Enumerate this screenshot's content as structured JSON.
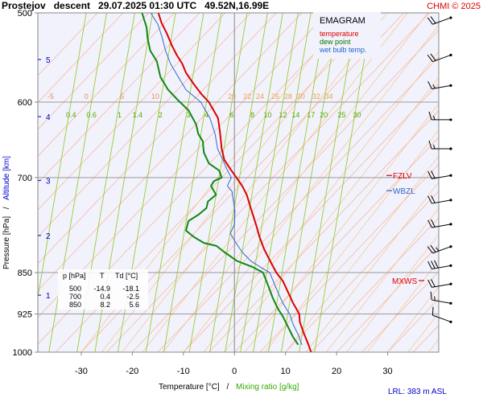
{
  "header": {
    "title": "Prostejov   descent   29.07.2025 01:30 UTC   49.52N,16.99E",
    "credit": "CHMI © 2025"
  },
  "legend": {
    "title": "EMAGRAM",
    "items": [
      {
        "label": "temperature",
        "color": "#dd0000"
      },
      {
        "label": "dew point",
        "color": "#007700"
      },
      {
        "label": "wet bulb temp.",
        "color": "#2266cc"
      }
    ]
  },
  "footer": {
    "lrl": "LRL: 383 m ASL"
  },
  "colors": {
    "plot_bg": "#f2f2fc",
    "temperature": "#dd0000",
    "dewpoint": "#118811",
    "wetbulb": "#3366cc",
    "dry_adiabat": "#f3b9a0",
    "moist_adiabat": "#f5c89a",
    "mixing_ratio": "#99cc33",
    "isobar": "#999999",
    "altitude": "#0000cc",
    "wind": "#000000"
  },
  "stats_table": {
    "headers": [
      "p [hPa]",
      "T",
      "Td [°C]"
    ],
    "rows": [
      [
        "500",
        "-14.9",
        "-18.1"
      ],
      [
        "700",
        "0.4",
        "-2.5"
      ],
      [
        "850",
        "8.2",
        "5.6"
      ]
    ]
  },
  "level_markers": [
    {
      "label": "FZLV",
      "pressure": 697,
      "color": "#dd0000"
    },
    {
      "label": "WBZL",
      "pressure": 719,
      "color": "#3366cc"
    },
    {
      "label": "MXWS",
      "pressure": 864,
      "color": "#dd0000"
    }
  ],
  "chart_data": {
    "type": "line",
    "title": "Prostejov   descent   29.07.2025 01:30 UTC   49.52N,16.99E",
    "xlabel": "Temperature [°C]",
    "xlabel2": "Mixing ratio [g/kg]",
    "xlabel_sep": "/",
    "ylabel": "Pressure [hPa]",
    "ylabel_sep": "/",
    "ylabel2": "Altitude [km]",
    "xlim": [
      -38.5,
      40
    ],
    "ylim": [
      1000,
      500
    ],
    "y_scale": "log",
    "x_ticks": [
      -30,
      -20,
      -10,
      0,
      10,
      20,
      30
    ],
    "y_ticks": [
      500,
      600,
      700,
      850,
      925,
      1000
    ],
    "altitude_ticks": [
      {
        "label": "1",
        "pressure": 890
      },
      {
        "label": "2",
        "pressure": 788
      },
      {
        "label": "3",
        "pressure": 704
      },
      {
        "label": "4",
        "pressure": 618
      },
      {
        "label": "5",
        "pressure": 550
      }
    ],
    "dry_adiabat_labels": [
      {
        "label": "-5",
        "t": -36
      },
      {
        "label": "0",
        "t": -29
      },
      {
        "label": "5",
        "t": -22
      },
      {
        "label": "10",
        "t": -15.5
      }
    ],
    "moist_adiabat_labels": [
      {
        "label": "20",
        "t": -0.5
      },
      {
        "label": "22",
        "t": 2.5
      },
      {
        "label": "24",
        "t": 5
      },
      {
        "label": "26",
        "t": 8
      },
      {
        "label": "28",
        "t": 10.5
      },
      {
        "label": "30",
        "t": 13
      },
      {
        "label": "32",
        "t": 16
      },
      {
        "label": "34",
        "t": 18.5
      }
    ],
    "mixing_ratio_labels": [
      {
        "label": "0.4",
        "t": -32
      },
      {
        "label": "0.6",
        "t": -28
      },
      {
        "label": "1",
        "t": -22.5
      },
      {
        "label": "1.4",
        "t": -19
      },
      {
        "label": "2",
        "t": -14.5
      },
      {
        "label": "3",
        "t": -9
      },
      {
        "label": "4",
        "t": -5.5
      },
      {
        "label": "6",
        "t": -0.5
      },
      {
        "label": "8",
        "t": 3.5
      },
      {
        "label": "10",
        "t": 6.5
      },
      {
        "label": "12",
        "t": 9.5
      },
      {
        "label": "14",
        "t": 12
      },
      {
        "label": "17",
        "t": 15
      },
      {
        "label": "20",
        "t": 17.5
      },
      {
        "label": "25",
        "t": 21
      },
      {
        "label": "30",
        "t": 24
      }
    ],
    "series": [
      {
        "name": "temperature",
        "color": "#dd0000",
        "points": [
          [
            15,
            1000
          ],
          [
            14.5,
            985
          ],
          [
            13.5,
            960
          ],
          [
            12.8,
            940
          ],
          [
            12.7,
            925
          ],
          [
            11.5,
            905
          ],
          [
            10.5,
            885
          ],
          [
            9.5,
            865
          ],
          [
            8.2,
            850
          ],
          [
            7,
            830
          ],
          [
            5.8,
            810
          ],
          [
            4.9,
            790
          ],
          [
            4.2,
            770
          ],
          [
            3.2,
            745
          ],
          [
            2.4,
            725
          ],
          [
            1.5,
            712
          ],
          [
            0.4,
            700
          ],
          [
            -0.8,
            688
          ],
          [
            -2,
            675
          ],
          [
            -2.5,
            660
          ],
          [
            -2.8,
            640
          ],
          [
            -3.2,
            620
          ],
          [
            -5,
            600
          ],
          [
            -6.5,
            590
          ],
          [
            -8,
            578
          ],
          [
            -9.5,
            565
          ],
          [
            -10.2,
            555
          ],
          [
            -11.3,
            545
          ],
          [
            -12.2,
            535
          ],
          [
            -13.2,
            522
          ],
          [
            -14.3,
            510
          ],
          [
            -14.9,
            500
          ]
        ]
      },
      {
        "name": "dew point",
        "color": "#118811",
        "points": [
          [
            12.5,
            985
          ],
          [
            11.5,
            970
          ],
          [
            10.5,
            950
          ],
          [
            9.5,
            930
          ],
          [
            8.5,
            915
          ],
          [
            7.5,
            895
          ],
          [
            6.7,
            875
          ],
          [
            5.6,
            850
          ],
          [
            3.5,
            840
          ],
          [
            0.5,
            830
          ],
          [
            -2,
            815
          ],
          [
            -3.5,
            805
          ],
          [
            -6,
            800
          ],
          [
            -8,
            790
          ],
          [
            -9.5,
            780
          ],
          [
            -9,
            765
          ],
          [
            -7,
            755
          ],
          [
            -5.5,
            745
          ],
          [
            -5.2,
            735
          ],
          [
            -3.6,
            725
          ],
          [
            -4.6,
            712
          ],
          [
            -4,
            705
          ],
          [
            -2.5,
            700
          ],
          [
            -3,
            690
          ],
          [
            -5,
            680
          ],
          [
            -6,
            665
          ],
          [
            -6.2,
            650
          ],
          [
            -7.1,
            640
          ],
          [
            -7.5,
            628
          ],
          [
            -9,
            610
          ],
          [
            -11,
            598
          ],
          [
            -13,
            585
          ],
          [
            -14.5,
            570
          ],
          [
            -15.2,
            552
          ],
          [
            -16.5,
            540
          ],
          [
            -17,
            527
          ],
          [
            -17.2,
            515
          ],
          [
            -18.1,
            500
          ]
        ]
      },
      {
        "name": "wet bulb temp.",
        "color": "#3366cc",
        "points": [
          [
            13.2,
            985
          ],
          [
            12.5,
            965
          ],
          [
            11.5,
            945
          ],
          [
            10.8,
            925
          ],
          [
            9.5,
            905
          ],
          [
            8.5,
            885
          ],
          [
            6.9,
            850
          ],
          [
            5,
            840
          ],
          [
            3.2,
            830
          ],
          [
            1.5,
            815
          ],
          [
            0.3,
            800
          ],
          [
            -0.8,
            785
          ],
          [
            0,
            770
          ],
          [
            0.1,
            750
          ],
          [
            -0.2,
            735
          ],
          [
            -0.5,
            720
          ],
          [
            -1.4,
            712
          ],
          [
            -0.6,
            700
          ],
          [
            -1.5,
            688
          ],
          [
            -2.3,
            675
          ],
          [
            -3.3,
            660
          ],
          [
            -3.8,
            640
          ],
          [
            -4.8,
            620
          ],
          [
            -6.6,
            600
          ],
          [
            -9.5,
            585
          ],
          [
            -11,
            570
          ],
          [
            -12.5,
            555
          ],
          [
            -13.5,
            540
          ],
          [
            -14.2,
            525
          ],
          [
            -15,
            512
          ],
          [
            -16.4,
            500
          ]
        ]
      }
    ],
    "wind_profile": [
      {
        "pressure": 505,
        "dir": 250,
        "speed": 20
      },
      {
        "pressure": 545,
        "dir": 250,
        "speed": 20
      },
      {
        "pressure": 580,
        "dir": 260,
        "speed": 15
      },
      {
        "pressure": 622,
        "dir": 270,
        "speed": 15
      },
      {
        "pressure": 660,
        "dir": 270,
        "speed": 15
      },
      {
        "pressure": 697,
        "dir": 260,
        "speed": 20
      },
      {
        "pressure": 733,
        "dir": 260,
        "speed": 20
      },
      {
        "pressure": 770,
        "dir": 260,
        "speed": 20
      },
      {
        "pressure": 806,
        "dir": 250,
        "speed": 25
      },
      {
        "pressure": 838,
        "dir": 260,
        "speed": 30
      },
      {
        "pressure": 870,
        "dir": 260,
        "speed": 20
      },
      {
        "pressure": 905,
        "dir": 280,
        "speed": 15
      },
      {
        "pressure": 940,
        "dir": 290,
        "speed": 10
      }
    ]
  }
}
